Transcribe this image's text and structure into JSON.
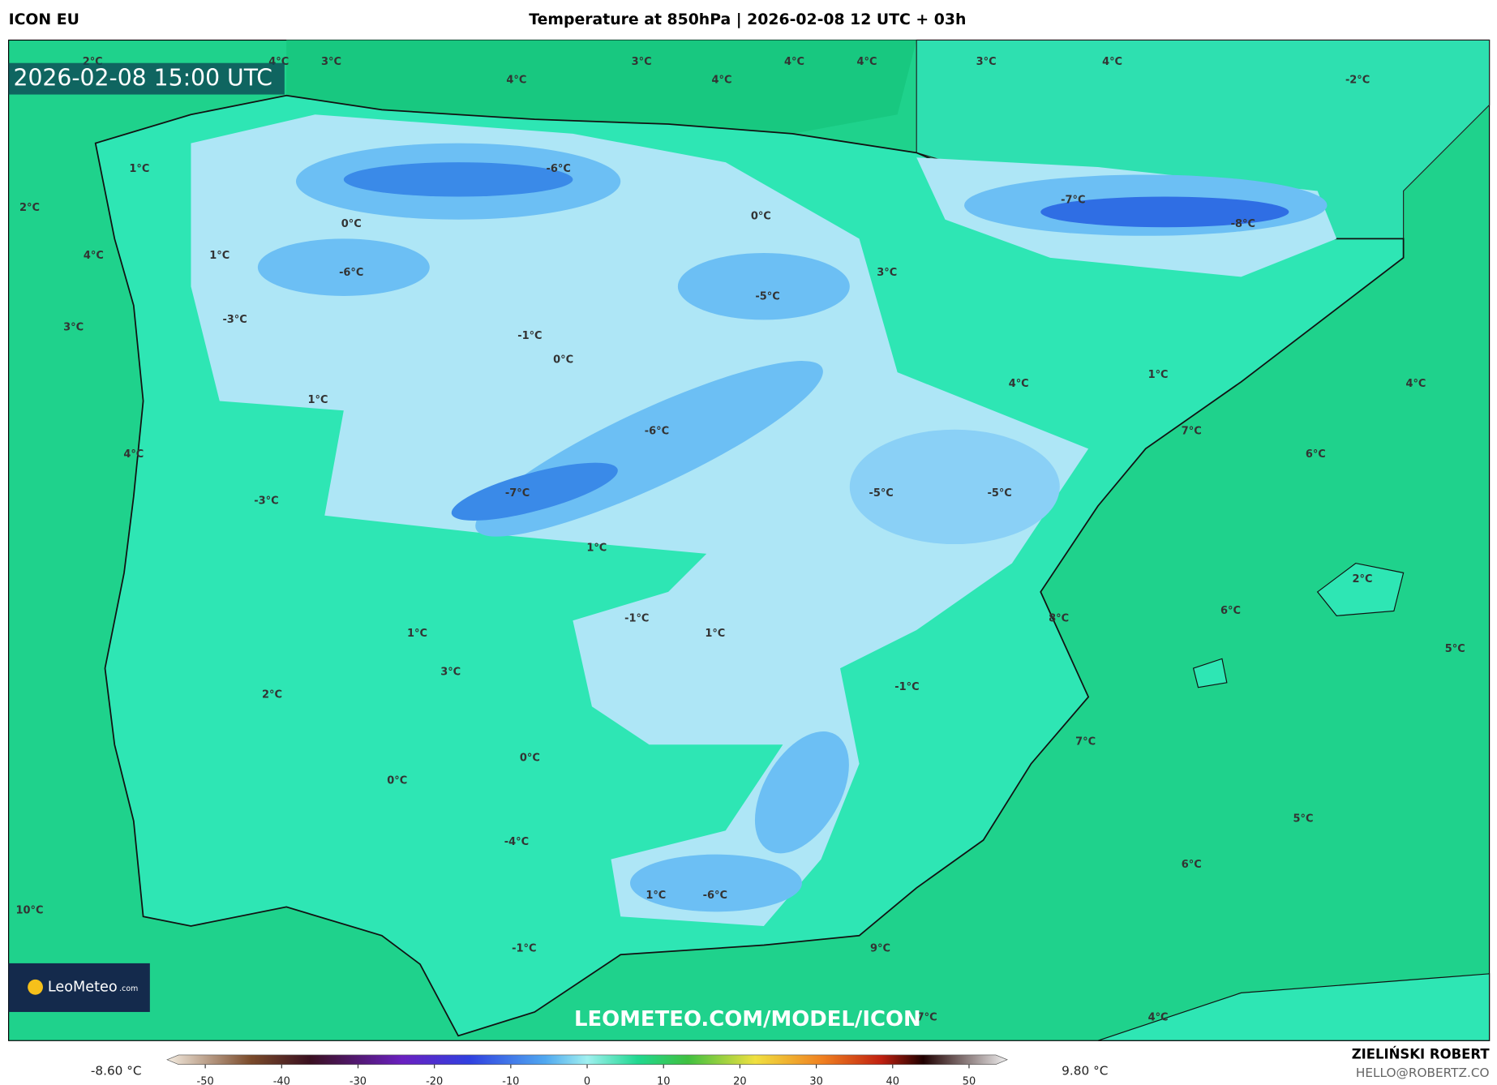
{
  "header": {
    "model": "ICON EU",
    "title": "Temperature at 850hPa | 2026-02-08 12 UTC + 03h"
  },
  "timestamp": "2026-02-08 15:00 UTC",
  "map_labels": [
    "2°C",
    "4°C",
    "3°C",
    "4°C",
    "3°C",
    "4°C",
    "4°C",
    "4°C",
    "3°C",
    "4°C",
    "-2°C",
    "1°C",
    "2°C",
    "0°C",
    "-6°C",
    "0°C",
    "-7°C",
    "-8°C",
    "1°C",
    "4°C",
    "-6°C",
    "3°C",
    "-5°C",
    "-3°C",
    "3°C",
    "-1°C",
    "0°C",
    "1°C",
    "4°C",
    "4°C",
    "1°C",
    "-6°C",
    "7°C",
    "4°C",
    "6°C",
    "-7°C",
    "-5°C",
    "-5°C",
    "-3°C",
    "1°C",
    "2°C",
    "6°C",
    "8°C",
    "-1°C",
    "1°C",
    "1°C",
    "3°C",
    "5°C",
    "-1°C",
    "2°C",
    "7°C",
    "0°C",
    "0°C",
    "5°C",
    "-4°C",
    "6°C",
    "1°C",
    "-6°C",
    "10°C",
    "-1°C",
    "9°C",
    "7°C",
    "4°C"
  ],
  "watermark": "LEOMETEO.COM/MODEL/ICON",
  "logo": {
    "name": "LeoMeteo",
    "suffix": ".com"
  },
  "colorbar": {
    "min_label": "-8.60 °C",
    "max_label": "9.80 °C",
    "range": [
      -55,
      55
    ],
    "ticks": [
      -50,
      -40,
      -30,
      -20,
      -10,
      0,
      10,
      20,
      30,
      40,
      50
    ]
  },
  "author": {
    "name": "ZIELIŃSKI ROBERT",
    "email": "HELLO@ROBERTZ.CO"
  }
}
